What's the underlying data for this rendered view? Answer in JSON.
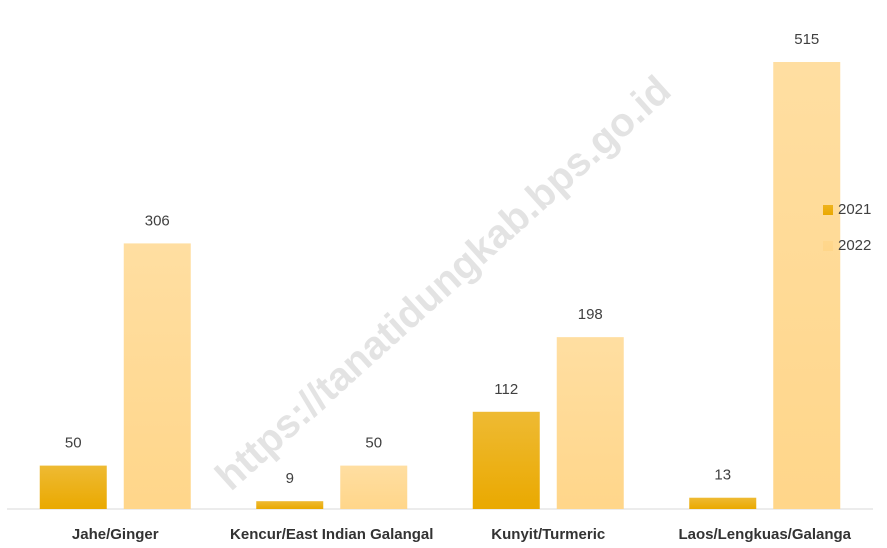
{
  "chart_data": {
    "type": "bar",
    "categories": [
      "Jahe/Ginger",
      "Kencur/East Indian Galangal",
      "Kunyit/Turmeric",
      "Laos/Lengkuas/Galanga"
    ],
    "series": [
      {
        "name": "2021",
        "color": "#eaa900",
        "values": [
          50,
          9,
          112,
          13
        ]
      },
      {
        "name": "2022",
        "color": "#ffd68a",
        "values": [
          306,
          50,
          198,
          515
        ]
      }
    ],
    "ylim": [
      0,
      515
    ],
    "grid": false,
    "legend": "right",
    "watermark": "https://tanatidungkab.bps.go.id"
  }
}
